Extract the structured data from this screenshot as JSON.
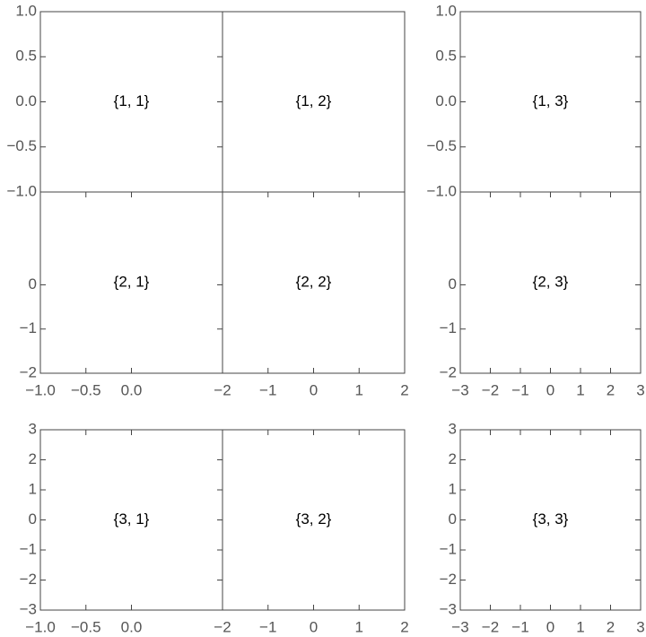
{
  "chart_data": [
    {
      "type": "frame",
      "label": "{1, 1}",
      "xlim": [
        -1,
        1
      ],
      "ylim": [
        -1,
        1
      ],
      "yticks": [
        {
          "value": -1,
          "label": "−1.0"
        },
        {
          "value": -0.5,
          "label": "−0.5"
        },
        {
          "value": 0,
          "label": "0.0"
        },
        0.5,
        {
          "value": 1,
          "label": "1.0"
        }
      ]
    },
    {
      "type": "frame",
      "label": "{1, 2}",
      "xlim": [
        -2,
        2
      ],
      "ylim": [
        -1,
        1
      ]
    },
    {
      "type": "frame",
      "label": "{1, 3}",
      "xlim": [
        -3,
        3
      ],
      "ylim": [
        -1,
        1
      ],
      "yticks": [
        {
          "value": -1,
          "label": "−1.0"
        },
        {
          "value": -0.5,
          "label": "−0.5"
        },
        {
          "value": 0,
          "label": "0.0"
        },
        0.5,
        {
          "value": 1,
          "label": "1.0"
        }
      ]
    },
    {
      "type": "frame",
      "label": "{2, 1}",
      "xlim": [
        -1,
        1
      ],
      "ylim": [
        -2,
        2.1
      ],
      "yticks": [
        {
          "value": -2,
          "label": "−2"
        },
        {
          "value": -1,
          "label": "−1"
        },
        0
      ],
      "xticks": [
        {
          "value": -1,
          "label": "−1.0"
        },
        {
          "value": -0.5,
          "label": "−0.5"
        },
        {
          "value": 0,
          "label": "0.0"
        }
      ]
    },
    {
      "type": "frame",
      "label": "{2, 2}",
      "xlim": [
        -2,
        2
      ],
      "ylim": [
        -2,
        2.1
      ],
      "xticks": [
        {
          "value": -2,
          "label": "−2"
        },
        {
          "value": -1,
          "label": "−1"
        },
        0,
        1,
        2
      ]
    },
    {
      "type": "frame",
      "label": "{2, 3}",
      "xlim": [
        -3,
        3
      ],
      "ylim": [
        -2,
        2.1
      ],
      "yticks": [
        {
          "value": -2,
          "label": "−2"
        },
        {
          "value": -1,
          "label": "−1"
        },
        0
      ],
      "xticks": [
        {
          "value": -3,
          "label": "−3"
        },
        {
          "value": -2,
          "label": "−2"
        },
        {
          "value": -1,
          "label": "−1"
        },
        0,
        1,
        2,
        3
      ]
    },
    {
      "type": "frame",
      "label": "{3, 1}",
      "xlim": [
        -1,
        1
      ],
      "ylim": [
        -3,
        3
      ],
      "yticks": [
        {
          "value": -3,
          "label": "−3"
        },
        {
          "value": -2,
          "label": "−2"
        },
        {
          "value": -1,
          "label": "−1"
        },
        0,
        1,
        2,
        3
      ],
      "xticks": [
        {
          "value": -1,
          "label": "−1.0"
        },
        {
          "value": -0.5,
          "label": "−0.5"
        },
        {
          "value": 0,
          "label": "0.0"
        }
      ]
    },
    {
      "type": "frame",
      "label": "{3, 2}",
      "xlim": [
        -2,
        2
      ],
      "ylim": [
        -3,
        3
      ],
      "xticks": [
        {
          "value": -2,
          "label": "−2"
        },
        {
          "value": -1,
          "label": "−1"
        },
        0,
        1,
        2
      ]
    },
    {
      "type": "frame",
      "label": "{3, 3}",
      "xlim": [
        -3,
        3
      ],
      "ylim": [
        -3,
        3
      ],
      "yticks": [
        {
          "value": -3,
          "label": "−3"
        },
        {
          "value": -2,
          "label": "−2"
        },
        {
          "value": -1,
          "label": "−1"
        },
        0,
        1,
        2,
        3
      ],
      "xticks": [
        {
          "value": -3,
          "label": "−3"
        },
        {
          "value": -2,
          "label": "−2"
        },
        {
          "value": -1,
          "label": "−1"
        },
        0,
        1,
        2,
        3
      ]
    }
  ]
}
